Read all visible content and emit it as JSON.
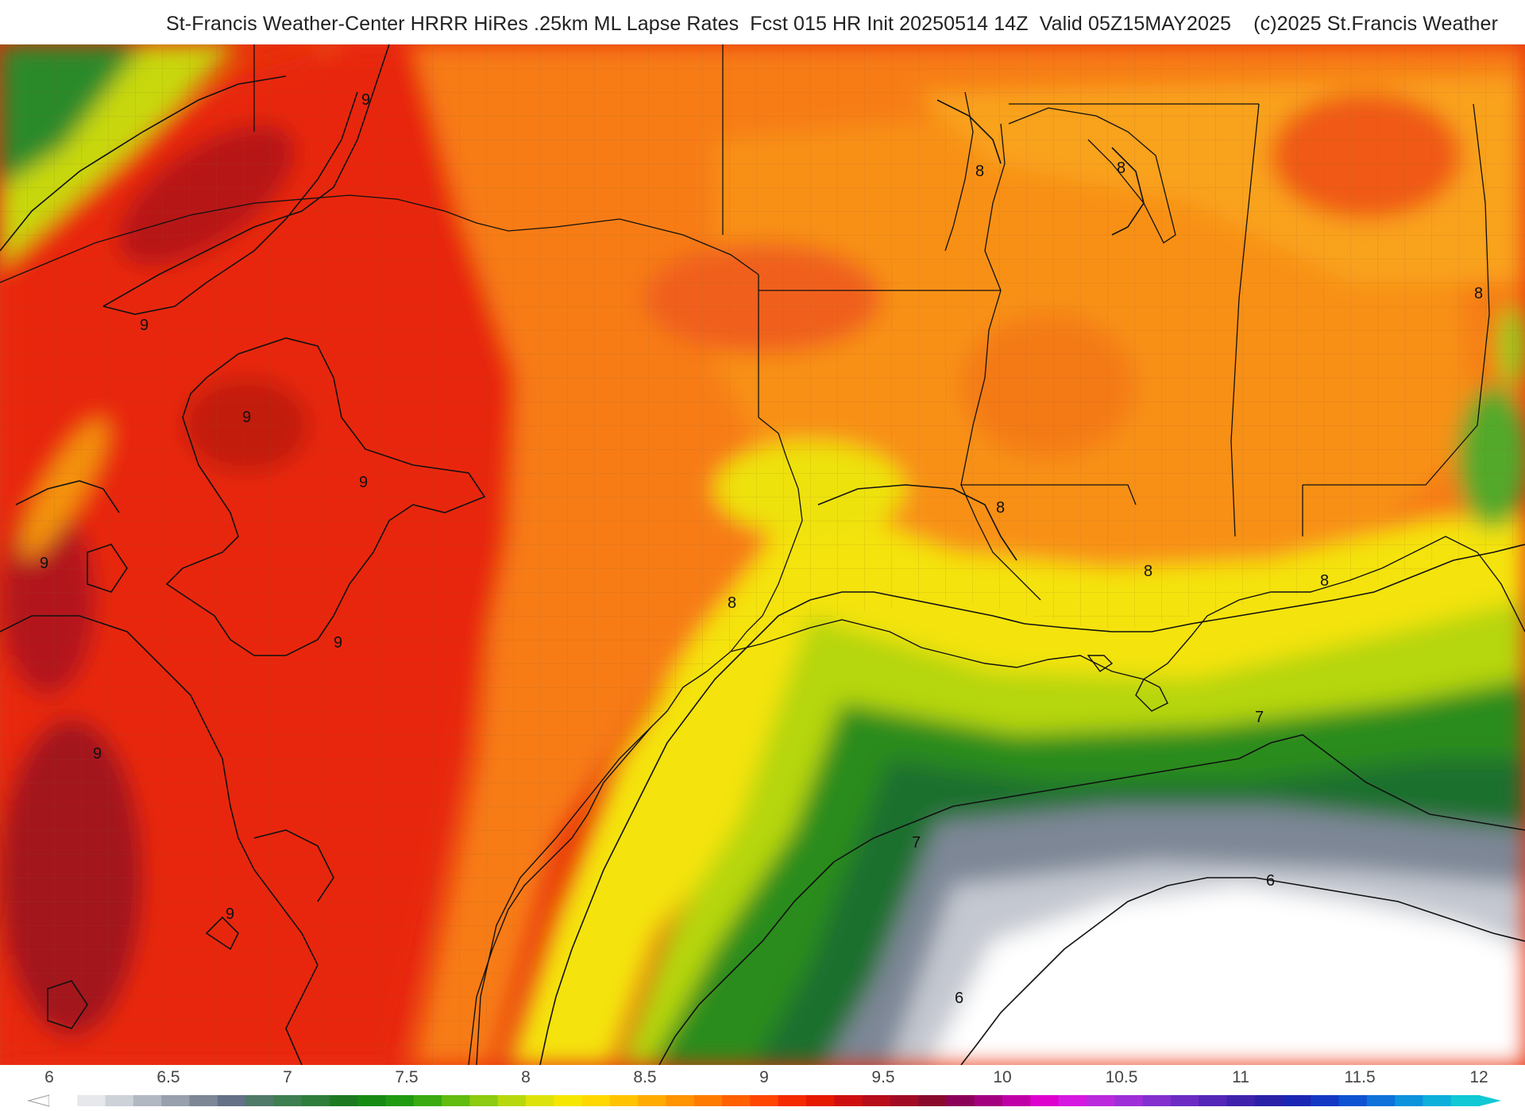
{
  "title": "St-Francis Weather-Center HRRR HiRes .25km ML Lapse Rates  Fcst 015 HR Init 20250514 14Z  Valid 05Z15MAY2025    (c)2025 St.Francis Weather",
  "map": {
    "field": "ML Lapse Rates",
    "contour_labels": [
      "9",
      "9",
      "9",
      "9",
      "9",
      "9",
      "9",
      "9",
      "8",
      "8",
      "8",
      "8",
      "8",
      "8",
      "8",
      "7",
      "7",
      "6",
      "6"
    ]
  },
  "colorbar": {
    "ticks": [
      "6",
      "6.5",
      "7",
      "7.5",
      "8",
      "8.5",
      "9",
      "9.5",
      "10",
      "10.5",
      "11",
      "11.5",
      "12"
    ],
    "colors": [
      "#ffffff",
      "#e6e8ec",
      "#cdd1d8",
      "#b2b8c2",
      "#98a0ad",
      "#7e8796",
      "#647186",
      "#4f7a6a",
      "#3d7f50",
      "#2f7d3a",
      "#1e7a22",
      "#178a14",
      "#209a10",
      "#3aab10",
      "#62bc10",
      "#8ccb10",
      "#b8d80e",
      "#dde20a",
      "#f6e700",
      "#ffd800",
      "#ffc300",
      "#ffab00",
      "#ff9300",
      "#ff7b00",
      "#ff6000",
      "#ff4500",
      "#f52a00",
      "#e61a00",
      "#cf0f0f",
      "#b80d1a",
      "#a10c24",
      "#8a0a2e",
      "#8c0059",
      "#a3007f",
      "#c000a6",
      "#dd00cc",
      "#d619e0",
      "#bb29dc",
      "#9e2fd8",
      "#8430cf",
      "#6c2cc4",
      "#5527b8",
      "#3f23ad",
      "#2a21a8",
      "#1c26b4",
      "#1438c4",
      "#0e53d2",
      "#0e72da",
      "#0d92dc",
      "#0db0da",
      "#10c9d4"
    ]
  }
}
